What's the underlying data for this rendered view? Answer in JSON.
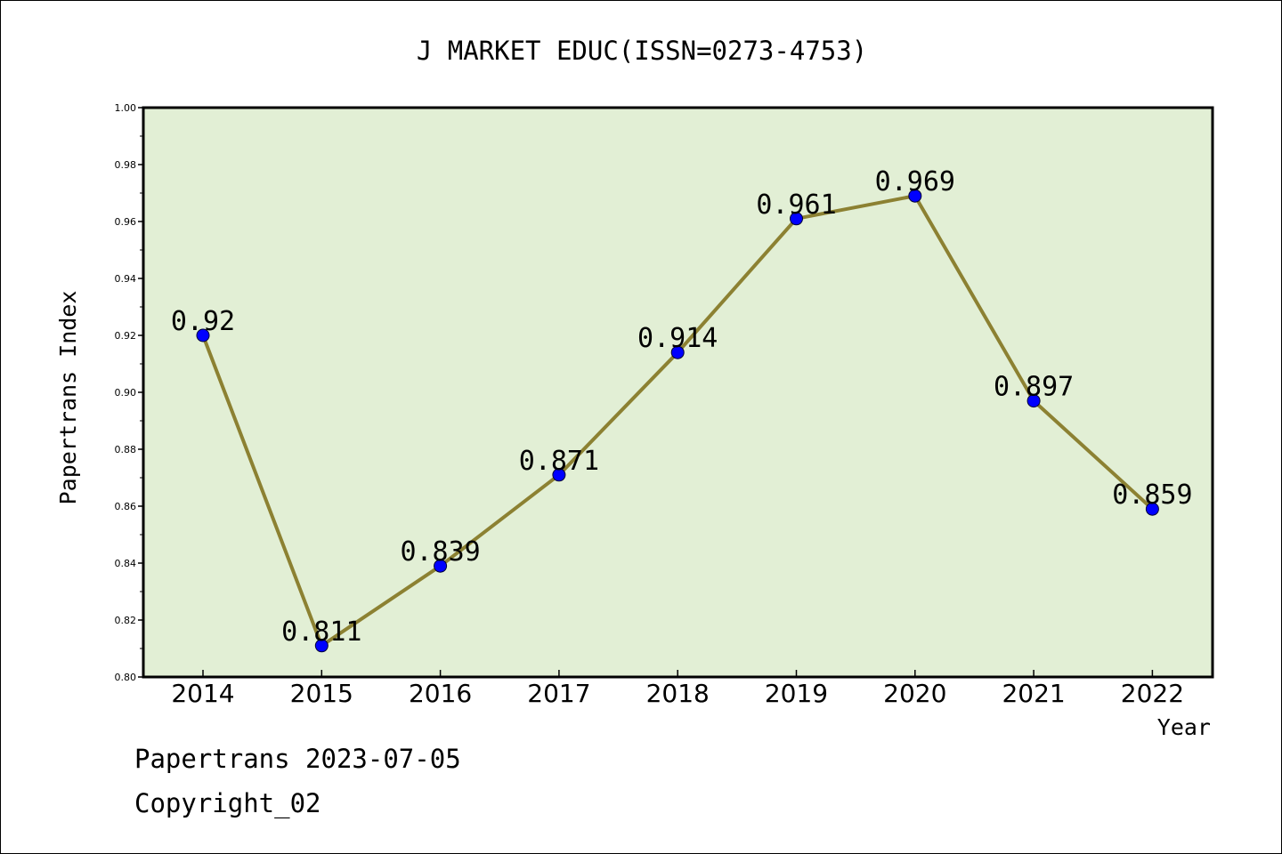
{
  "chart_data": {
    "type": "line",
    "title": "J MARKET EDUC(ISSN=0273-4753)",
    "xlabel": "Year",
    "ylabel": "Papertrans Index",
    "categories": [
      "2014",
      "2015",
      "2016",
      "2017",
      "2018",
      "2019",
      "2020",
      "2021",
      "2022"
    ],
    "values": [
      0.92,
      0.811,
      0.839,
      0.871,
      0.914,
      0.961,
      0.969,
      0.897,
      0.859
    ],
    "data_labels": [
      "0.92",
      "0.811",
      "0.839",
      "0.871",
      "0.914",
      "0.961",
      "0.969",
      "0.897",
      "0.859"
    ],
    "ylim": [
      0.8,
      1.0
    ],
    "yticks": [
      "0.80",
      "0.82",
      "0.84",
      "0.86",
      "0.88",
      "0.90",
      "0.92",
      "0.94",
      "0.96",
      "0.98",
      "1.00"
    ],
    "grid": false,
    "legend": "none",
    "colors": {
      "plot_background": "#e2efd5",
      "line": "#8c8132",
      "marker": "#0000ff"
    }
  },
  "footer": {
    "line1": "Papertrans 2023-07-05",
    "line2": "Copyright_02"
  }
}
